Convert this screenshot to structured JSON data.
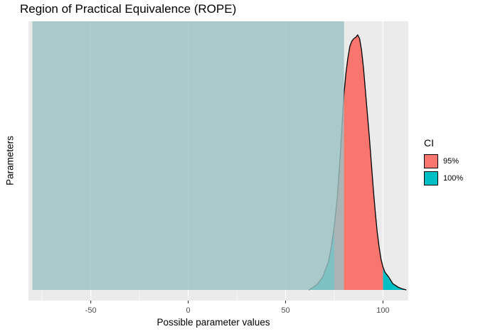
{
  "chart_data": {
    "type": "area",
    "title": "Region of Practical Equivalence (ROPE)",
    "xlabel": "Possible parameter values",
    "ylabel": "Parameters",
    "xlim": [
      -82,
      113
    ],
    "x_ticks": [
      -50,
      0,
      50,
      100
    ],
    "x_tick_labels": [
      "-50",
      "0",
      "50",
      "100"
    ],
    "rope_range": [
      -80,
      80
    ],
    "legend_title": "CI",
    "series": [
      {
        "name": "95%",
        "color": "#F8766D",
        "range": [
          75,
          100
        ]
      },
      {
        "name": "100%",
        "color": "#00BFC4",
        "range": [
          62,
          112
        ]
      }
    ],
    "density": {
      "x": [
        62,
        66,
        69,
        72,
        73.5,
        75,
        76.5,
        78,
        79,
        80,
        81,
        82,
        83,
        84,
        85,
        86,
        87,
        88,
        89,
        90,
        91,
        92,
        93,
        94,
        95,
        96,
        97,
        98,
        99,
        100,
        101,
        103,
        105,
        108,
        110,
        112
      ],
      "y": [
        0.0,
        0.02,
        0.05,
        0.11,
        0.17,
        0.25,
        0.36,
        0.52,
        0.65,
        0.77,
        0.85,
        0.91,
        0.955,
        0.975,
        0.985,
        0.99,
        1.0,
        0.985,
        0.94,
        0.87,
        0.78,
        0.69,
        0.6,
        0.5,
        0.4,
        0.31,
        0.23,
        0.17,
        0.12,
        0.09,
        0.07,
        0.05,
        0.025,
        0.01,
        0.004,
        0.0
      ]
    },
    "grid": true,
    "legend_position": "right"
  }
}
